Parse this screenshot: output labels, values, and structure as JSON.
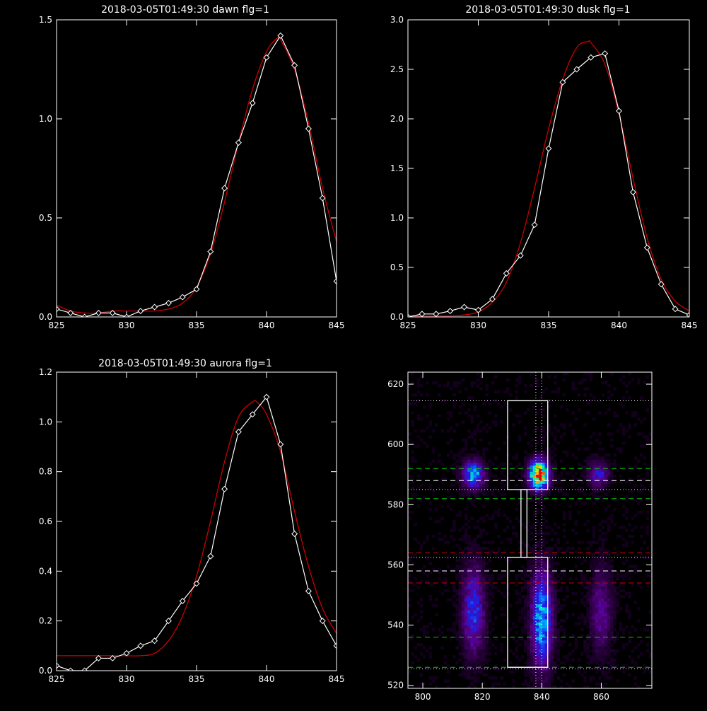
{
  "chart_data": [
    {
      "type": "line",
      "title": "2018-03-05T01:49:30 dawn flg=1",
      "xlim": [
        825,
        845
      ],
      "ylim": [
        0,
        1.5
      ],
      "xticks": [
        "825",
        "830",
        "835",
        "840",
        "845"
      ],
      "yticks": [
        "0.0",
        "0.5",
        "1.0",
        "1.5"
      ],
      "series": [
        {
          "kind": "measured",
          "color": "#ffffff",
          "x": [
            825,
            826,
            827,
            828,
            829,
            830,
            831,
            832,
            833,
            834,
            835,
            836,
            837,
            838,
            839,
            840,
            841,
            842,
            843,
            844,
            845
          ],
          "y": [
            0.04,
            0.02,
            0.0,
            0.02,
            0.02,
            0.0,
            0.03,
            0.05,
            0.07,
            0.1,
            0.14,
            0.33,
            0.65,
            0.88,
            1.08,
            1.31,
            1.42,
            1.27,
            0.95,
            0.6,
            0.18
          ]
        },
        {
          "kind": "fit",
          "color": "#cc0000",
          "x": [
            825,
            826,
            827,
            828,
            829,
            830,
            831,
            832,
            833,
            834,
            835,
            836,
            837,
            838,
            839,
            840,
            840.8,
            841,
            842,
            843,
            844,
            845
          ],
          "y": [
            0.06,
            0.03,
            0.02,
            0.02,
            0.03,
            0.03,
            0.03,
            0.03,
            0.04,
            0.07,
            0.15,
            0.32,
            0.58,
            0.88,
            1.15,
            1.34,
            1.41,
            1.4,
            1.25,
            0.98,
            0.65,
            0.38
          ]
        }
      ]
    },
    {
      "type": "line",
      "title": "2018-03-05T01:49:30 dusk flg=1",
      "xlim": [
        825,
        845
      ],
      "ylim": [
        0,
        3.0
      ],
      "xticks": [
        "825",
        "830",
        "835",
        "840",
        "845"
      ],
      "yticks": [
        "0.0",
        "0.5",
        "1.0",
        "1.5",
        "2.0",
        "2.5",
        "3.0"
      ],
      "series": [
        {
          "kind": "measured",
          "color": "#ffffff",
          "x": [
            825,
            826,
            827,
            828,
            829,
            830,
            831,
            832,
            833,
            834,
            835,
            836,
            837,
            838,
            839,
            840,
            841,
            842,
            843,
            844,
            845
          ],
          "y": [
            0.0,
            0.03,
            0.03,
            0.06,
            0.1,
            0.07,
            0.18,
            0.44,
            0.62,
            0.93,
            1.7,
            2.37,
            2.5,
            2.62,
            2.66,
            2.08,
            1.26,
            0.7,
            0.33,
            0.08,
            0.02
          ]
        },
        {
          "kind": "fit",
          "color": "#cc0000",
          "x": [
            825,
            826,
            827,
            828,
            829,
            830,
            831,
            832,
            833,
            834,
            835,
            836,
            837,
            837.8,
            838,
            839,
            840,
            841,
            842,
            843,
            844,
            845
          ],
          "y": [
            0.01,
            0.01,
            0.01,
            0.01,
            0.02,
            0.05,
            0.15,
            0.35,
            0.75,
            1.3,
            1.9,
            2.4,
            2.72,
            2.78,
            2.77,
            2.55,
            2.05,
            1.4,
            0.8,
            0.38,
            0.16,
            0.06
          ]
        }
      ]
    },
    {
      "type": "line",
      "title": "2018-03-05T01:49:30 aurora flg=1",
      "xlim": [
        825,
        845
      ],
      "ylim": [
        0,
        1.2
      ],
      "xticks": [
        "825",
        "830",
        "835",
        "840",
        "845"
      ],
      "yticks": [
        "0.0",
        "0.2",
        "0.4",
        "0.6",
        "0.8",
        "1.0",
        "1.2"
      ],
      "series": [
        {
          "kind": "measured",
          "color": "#ffffff",
          "x": [
            825,
            826,
            827,
            828,
            829,
            830,
            831,
            832,
            833,
            834,
            835,
            836,
            837,
            838,
            839,
            840,
            841,
            842,
            843,
            844,
            845
          ],
          "y": [
            0.02,
            0.0,
            0.0,
            0.05,
            0.05,
            0.07,
            0.1,
            0.12,
            0.2,
            0.28,
            0.35,
            0.46,
            0.73,
            0.96,
            1.03,
            1.1,
            0.91,
            0.55,
            0.32,
            0.2,
            0.1
          ]
        },
        {
          "kind": "fit",
          "color": "#cc0000",
          "x": [
            825,
            826,
            827,
            828,
            829,
            830,
            831,
            832,
            833,
            834,
            835,
            836,
            837,
            838,
            839,
            839.3,
            840,
            841,
            842,
            843,
            844,
            845
          ],
          "y": [
            0.06,
            0.06,
            0.06,
            0.06,
            0.06,
            0.06,
            0.06,
            0.07,
            0.12,
            0.22,
            0.38,
            0.6,
            0.84,
            1.02,
            1.08,
            1.08,
            1.03,
            0.88,
            0.64,
            0.42,
            0.25,
            0.15
          ]
        }
      ]
    },
    {
      "type": "heatmap",
      "xlim": [
        795,
        877
      ],
      "ylim": [
        519,
        624
      ],
      "xticks": [
        "800",
        "820",
        "840",
        "860"
      ],
      "yticks": [
        "520",
        "540",
        "560",
        "580",
        "600",
        "620"
      ],
      "blobs": [
        {
          "x": 817,
          "y": 590,
          "sx": 2.5,
          "sy": 3.0,
          "peak": 0.55
        },
        {
          "x": 839,
          "y": 590,
          "sx": 2.2,
          "sy": 3.2,
          "peak": 1.0
        },
        {
          "x": 859,
          "y": 590,
          "sx": 2.3,
          "sy": 3.0,
          "peak": 0.32
        },
        {
          "x": 817,
          "y": 545,
          "sx": 2.6,
          "sy": 10.0,
          "peak": 0.38
        },
        {
          "x": 840,
          "y": 542,
          "sx": 2.4,
          "sy": 11.0,
          "peak": 0.55
        },
        {
          "x": 860,
          "y": 545,
          "sx": 2.6,
          "sy": 10.0,
          "peak": 0.22
        }
      ],
      "boxes": [
        {
          "x0": 828.5,
          "x1": 842,
          "y0": 585,
          "y1": 614.5,
          "color": "#ffffff"
        },
        {
          "x0": 828.5,
          "x1": 842,
          "y0": 526,
          "y1": 562.5,
          "color": "#ffffff"
        },
        {
          "x0": 833,
          "x1": 835,
          "y0": 562.5,
          "y1": 585,
          "color": "#ffffff"
        }
      ],
      "hlines": [
        {
          "y": 614.5,
          "color": "#ffffff",
          "style": "dotted"
        },
        {
          "y": 592,
          "color": "#00cc00",
          "style": "dashed"
        },
        {
          "y": 588,
          "color": "#ffffff",
          "style": "dashed"
        },
        {
          "y": 585,
          "color": "#ffffff",
          "style": "dotted"
        },
        {
          "y": 582,
          "color": "#00cc00",
          "style": "dashed"
        },
        {
          "y": 564,
          "color": "#cc0000",
          "style": "dashed"
        },
        {
          "y": 562.5,
          "color": "#ffffff",
          "style": "dotted"
        },
        {
          "y": 558,
          "color": "#ffffff",
          "style": "dashed"
        },
        {
          "y": 554,
          "color": "#cc0000",
          "style": "dashed"
        },
        {
          "y": 536,
          "color": "#00cc00",
          "style": "dashed"
        },
        {
          "y": 526,
          "color": "#00cc00",
          "style": "dashed"
        },
        {
          "y": 525.5,
          "color": "#ffffff",
          "style": "dotted"
        }
      ],
      "vlines": [
        {
          "x": 838,
          "color": "#ffffff",
          "style": "dotted"
        },
        {
          "x": 840,
          "color": "#ffffff",
          "style": "dotted"
        }
      ]
    }
  ]
}
